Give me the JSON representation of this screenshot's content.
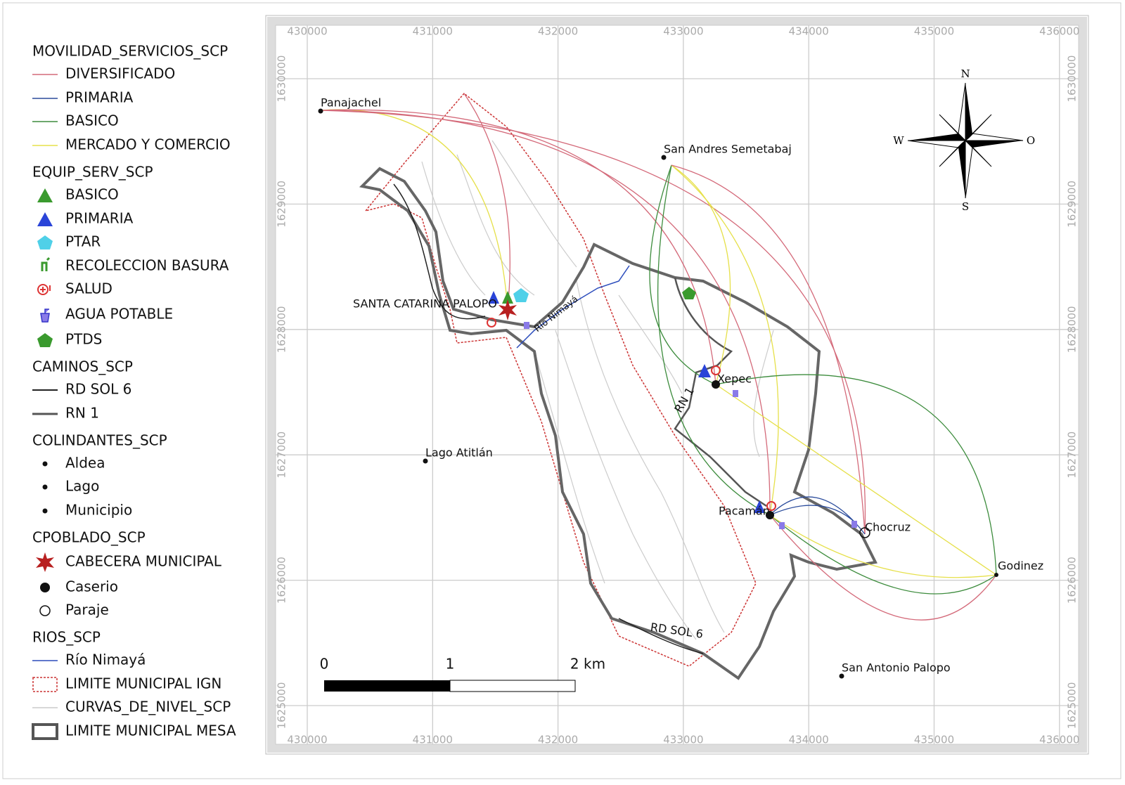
{
  "legend": {
    "groups": [
      {
        "title": "MOVILIDAD_SERVICIOS_SCP",
        "items": [
          "DIVERSIFICADO",
          "PRIMARIA",
          "BASICO",
          "MERCADO Y COMERCIO"
        ]
      },
      {
        "title": "EQUIP_SERV_SCP",
        "items": [
          "BASICO",
          "PRIMARIA",
          "PTAR",
          "RECOLECCION BASURA",
          "SALUD",
          "AGUA POTABLE",
          "PTDS"
        ]
      },
      {
        "title": "CAMINOS_SCP",
        "items": [
          "RD SOL 6",
          "RN 1"
        ]
      },
      {
        "title": "COLINDANTES_SCP",
        "items": [
          "Aldea",
          "Lago",
          "Municipio"
        ]
      },
      {
        "title": "CPOBLADO_SCP",
        "items": [
          "CABECERA MUNICIPAL",
          "Caserio",
          "Paraje"
        ]
      },
      {
        "title": "RIOS_SCP",
        "items": [
          "Río Nimayá"
        ]
      }
    ],
    "layers": [
      "LIMITE MUNICIPAL IGN",
      "CURVAS_DE_NIVEL_SCP",
      "LIMITE MUNICIPAL MESA"
    ]
  },
  "map": {
    "xticks": [
      430000,
      431000,
      432000,
      433000,
      434000,
      435000,
      436000
    ],
    "yticks": [
      1625000,
      1626000,
      1627000,
      1628000,
      1629000,
      1630000
    ],
    "places": [
      "Panajachel",
      "San Andres Semetabaj",
      "SANTA CATARINA PALOPO",
      "Lago Atitlán",
      "Xepec",
      "Pacamán",
      "Chocruz",
      "Godinez",
      "San Antonio Palopo"
    ],
    "roads": [
      "RN 1",
      "RD SOL 6"
    ],
    "river": "Río Nimayá",
    "scale": [
      "0",
      "1",
      "2 km"
    ],
    "compass": [
      "N",
      "W",
      "O",
      "S"
    ]
  }
}
